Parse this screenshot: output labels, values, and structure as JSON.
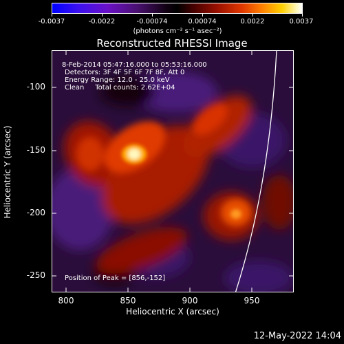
{
  "colorbar": {
    "tick_labels": [
      "-0.0037",
      "-0.0022",
      "-0.00074",
      "0.00074",
      "0.0022",
      "0.0037"
    ],
    "units": "(photons cm⁻² s⁻¹ asec⁻²)"
  },
  "plot": {
    "title": "Reconstructed RHESSI Image",
    "annotations": {
      "line1": "8-Feb-2014 05:47:16.000 to 05:53:16.000",
      "line2": "Detectors: 3F 4F 5F 6F 7F 8F, Att 0",
      "line3": "Energy Range: 12.0 - 25.0 keV",
      "line4": "Clean     Total counts: 2.62E+04",
      "peak": "Position of Peak = [856,-152]"
    },
    "xlabel": "Heliocentric X (arcsec)",
    "ylabel": "Heliocentric Y (arcsec)",
    "xticks": [
      "800",
      "850",
      "900",
      "950"
    ],
    "yticks": [
      "-100",
      "-150",
      "-200",
      "-250"
    ]
  },
  "footer_date": "12-May-2022 14:04",
  "chart_data": {
    "type": "heatmap",
    "title": "Reconstructed RHESSI Image",
    "xlabel": "Heliocentric X (arcsec)",
    "ylabel": "Heliocentric Y (arcsec)",
    "xlim": [
      788,
      984
    ],
    "ylim": [
      -264,
      -72
    ],
    "colorbar_range": [
      -0.0037,
      0.0037
    ],
    "peak": [
      856,
      -152
    ],
    "colormap": [
      "#0000ff",
      "#6a00d0",
      "#2a0040",
      "#000000",
      "#5a0000",
      "#c02000",
      "#ff6000",
      "#ffd040",
      "#ffffff"
    ]
  }
}
